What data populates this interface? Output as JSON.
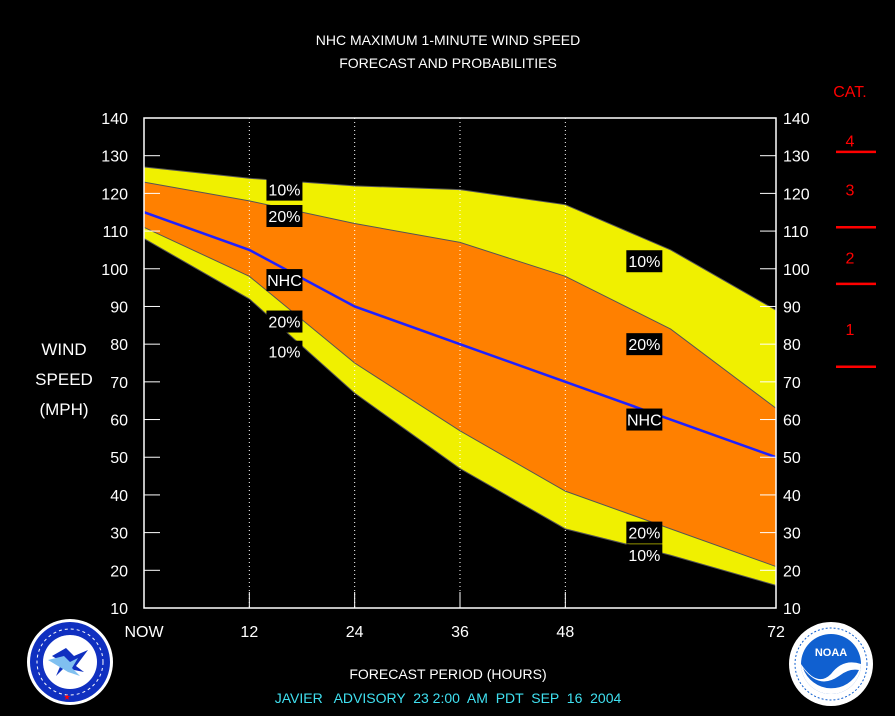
{
  "chart_data": {
    "type": "area",
    "title_line1": "NHC MAXIMUM 1-MINUTE WIND SPEED",
    "title_line2": "FORECAST AND PROBABILITIES",
    "ylabel_lines": [
      "WIND",
      "SPEED",
      "(MPH)"
    ],
    "xlabel": "FORECAST PERIOD (HOURS)",
    "footer": "JAVIER   ADVISORY  23 2:00  AM  PDT  SEP  16  2004",
    "x_ticks": [
      0,
      12,
      24,
      36,
      48,
      72
    ],
    "x_tick_labels": [
      "NOW",
      "12",
      "24",
      "36",
      "48",
      "72"
    ],
    "ylim": [
      10,
      140
    ],
    "y_ticks": [
      10,
      20,
      30,
      40,
      50,
      60,
      70,
      80,
      90,
      100,
      110,
      120,
      130,
      140
    ],
    "xlim": [
      0,
      72
    ],
    "colors": {
      "band_10": "#f0f000",
      "band_20": "#ff8000",
      "nhc_line": "#2020ff",
      "category": "#ff0000",
      "footer": "#40e0f0"
    },
    "series": [
      {
        "name": "10%",
        "x": [
          0,
          12,
          24,
          36,
          48,
          60,
          72
        ],
        "values": [
          127,
          124,
          122,
          121,
          117,
          105,
          89
        ]
      },
      {
        "name": "20%",
        "x": [
          0,
          12,
          24,
          36,
          48,
          60,
          72
        ],
        "values": [
          123,
          118,
          112,
          107,
          98,
          84,
          63
        ]
      },
      {
        "name": "NHC",
        "x": [
          0,
          12,
          24,
          36,
          48,
          60,
          72
        ],
        "values": [
          115,
          105,
          90,
          80,
          70,
          60,
          50
        ]
      },
      {
        "name": "20%",
        "x": [
          0,
          12,
          24,
          36,
          48,
          60,
          72
        ],
        "values": [
          111,
          98,
          75,
          57,
          41,
          31,
          21
        ]
      },
      {
        "name": "10%",
        "x": [
          0,
          12,
          24,
          36,
          48,
          60,
          72
        ],
        "values": [
          108,
          92,
          67,
          47,
          31,
          24,
          16
        ]
      }
    ],
    "labels": [
      {
        "text": "10%",
        "x": 16,
        "y": 121
      },
      {
        "text": "20%",
        "x": 16,
        "y": 114
      },
      {
        "text": "NHC",
        "x": 16,
        "y": 97
      },
      {
        "text": "20%",
        "x": 16,
        "y": 86
      },
      {
        "text": "10%",
        "x": 16,
        "y": 78
      },
      {
        "text": "10%",
        "x": 57,
        "y": 102
      },
      {
        "text": "20%",
        "x": 57,
        "y": 80
      },
      {
        "text": "NHC",
        "x": 57,
        "y": 60
      },
      {
        "text": "20%",
        "x": 57,
        "y": 30
      },
      {
        "text": "10%",
        "x": 57,
        "y": 24
      }
    ],
    "categories": {
      "header": "CAT.",
      "items": [
        {
          "label": "4",
          "mid": 134
        },
        {
          "label": "3",
          "mid": 121
        },
        {
          "label": "2",
          "mid": 103
        },
        {
          "label": "1",
          "mid": 84
        }
      ],
      "boundaries": [
        131,
        111,
        96,
        74
      ]
    }
  },
  "logos": {
    "left": {
      "name": "nws-logo",
      "text": "NATIONAL WEATHER SERVICE"
    },
    "right": {
      "name": "noaa-logo",
      "text": "NOAA"
    }
  }
}
